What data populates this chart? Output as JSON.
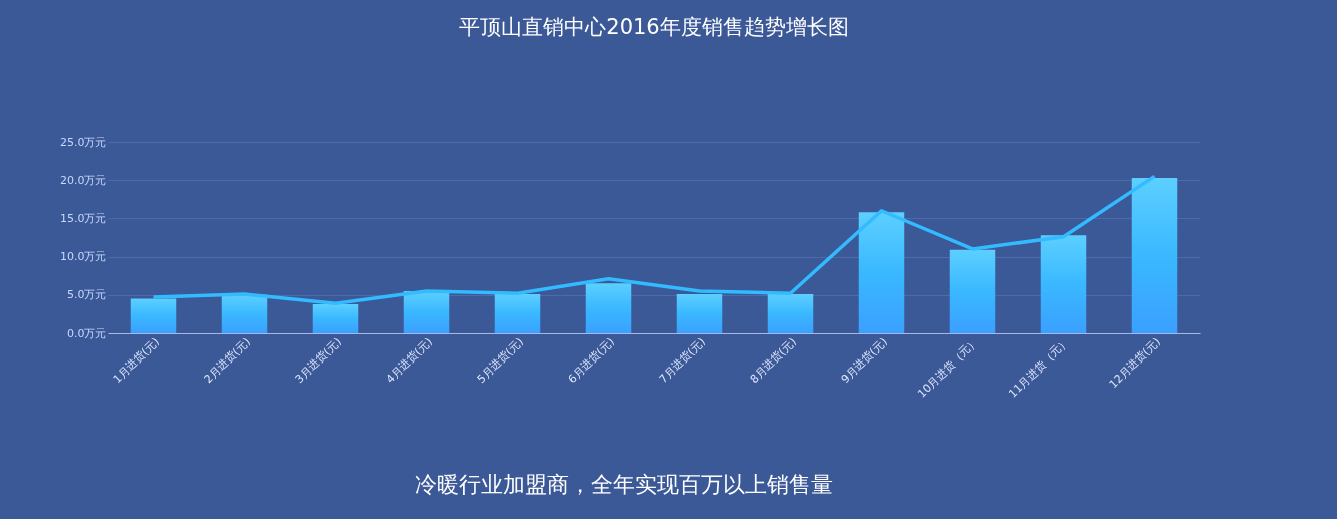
{
  "chart_data": {
    "type": "bar",
    "title": "平顶山直销中心2016年度销售趋势增长图",
    "categories": [
      "1月进货(元)",
      "2月进货(元)",
      "3月进货(元)",
      "4月进货(元)",
      "5月进货(元)",
      "6月进货(元)",
      "7月进货(元)",
      "8月进货(元)",
      "9月进货(元)",
      "10月进货（元）",
      "11月进货（元）",
      "12月进货(元)"
    ],
    "series": [
      {
        "color": "#3ab8ff",
        "values": [
          4.5,
          5.0,
          3.8,
          5.5,
          5.1,
          6.5,
          5.1,
          5.1,
          15.8,
          10.9,
          12.8,
          20.3
        ]
      },
      {
        "type": "line",
        "color": "#33bbff",
        "values": [
          4.7,
          5.1,
          3.9,
          5.5,
          5.2,
          7.1,
          5.5,
          5.2,
          16.0,
          11.0,
          12.6,
          20.5
        ]
      }
    ],
    "ylim": [
      0,
      25
    ],
    "yticks": [
      {
        "value": 0,
        "label": "0.0万元"
      },
      {
        "value": 5,
        "label": "5.0万元"
      },
      {
        "value": 10,
        "label": "10.0万元"
      },
      {
        "value": 15,
        "label": "15.0万元"
      },
      {
        "value": 20,
        "label": "20.0万元"
      },
      {
        "value": 25,
        "label": "25.0万元"
      }
    ],
    "grid": "y",
    "marker": "none",
    "line_style": "solid",
    "annotations": [
      "冷暖行业加盟商，全年实现百万以上销售量"
    ]
  }
}
